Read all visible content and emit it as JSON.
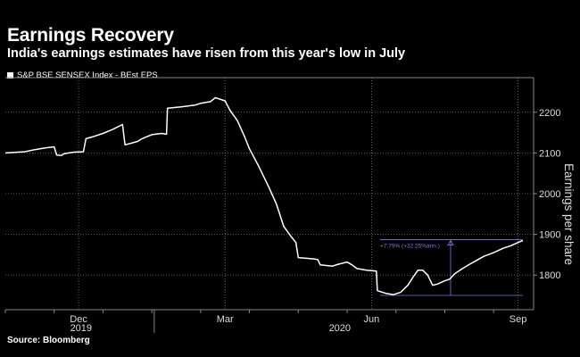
{
  "header": {
    "title": "Earnings Recovery",
    "subtitle": "India's earnings estimates have risen from this year's low in July"
  },
  "legend": {
    "label": "S&P BSE SENSEX Index - BEst EPS"
  },
  "source": "Source: Bloomberg",
  "colors": {
    "background": "#000000",
    "line": "#ffffff",
    "annotation": "#7b7bd6",
    "grid": "#666666"
  },
  "chart_data": {
    "type": "line",
    "title": "Earnings Recovery",
    "subtitle": "India's earnings estimates have risen from this year's low in July",
    "ylabel": "Earnings per share",
    "xlabel": "",
    "ylim": [
      1715,
      2285
    ],
    "y_ticks": [
      1800,
      1900,
      2000,
      2100,
      2200
    ],
    "y_axis_side": "right",
    "grid": "dotted",
    "x_month_labels": [
      "Dec",
      "Mar",
      "Jun",
      "Sep"
    ],
    "x_year_labels": [
      "2019",
      "2020"
    ],
    "series": [
      {
        "name": "S&P BSE SENSEX Index - BEst EPS",
        "points": [
          [
            0,
            2100
          ],
          [
            0.4,
            2103
          ],
          [
            0.6,
            2108
          ],
          [
            0.8,
            2112
          ],
          [
            1.0,
            2115
          ],
          [
            1.05,
            2095
          ],
          [
            1.15,
            2094
          ],
          [
            1.2,
            2098
          ],
          [
            1.4,
            2102
          ],
          [
            1.6,
            2103
          ],
          [
            1.65,
            2135
          ],
          [
            1.8,
            2140
          ],
          [
            2.0,
            2148
          ],
          [
            2.2,
            2158
          ],
          [
            2.4,
            2170
          ],
          [
            2.45,
            2120
          ],
          [
            2.7,
            2128
          ],
          [
            2.8,
            2135
          ],
          [
            2.9,
            2140
          ],
          [
            3.0,
            2145
          ],
          [
            3.2,
            2148
          ],
          [
            3.3,
            2146
          ],
          [
            3.32,
            2210
          ],
          [
            3.6,
            2213
          ],
          [
            3.9,
            2218
          ],
          [
            4.0,
            2222
          ],
          [
            4.2,
            2226
          ],
          [
            4.3,
            2236
          ],
          [
            4.5,
            2228
          ],
          [
            4.6,
            2205
          ],
          [
            4.75,
            2180
          ],
          [
            4.9,
            2140
          ],
          [
            5.0,
            2110
          ],
          [
            5.2,
            2065
          ],
          [
            5.4,
            2015
          ],
          [
            5.55,
            1975
          ],
          [
            5.7,
            1920
          ],
          [
            5.85,
            1895
          ],
          [
            5.95,
            1880
          ],
          [
            6.0,
            1843
          ],
          [
            6.3,
            1840
          ],
          [
            6.4,
            1838
          ],
          [
            6.45,
            1825
          ],
          [
            6.7,
            1822
          ],
          [
            6.8,
            1826
          ],
          [
            7.0,
            1832
          ],
          [
            7.1,
            1825
          ],
          [
            7.2,
            1816
          ],
          [
            7.4,
            1812
          ],
          [
            7.6,
            1810
          ],
          [
            7.62,
            1762
          ],
          [
            7.8,
            1755
          ],
          [
            7.95,
            1752
          ],
          [
            8.1,
            1758
          ],
          [
            8.25,
            1776
          ],
          [
            8.35,
            1795
          ],
          [
            8.45,
            1812
          ],
          [
            8.55,
            1812
          ],
          [
            8.65,
            1800
          ],
          [
            8.75,
            1775
          ],
          [
            8.85,
            1778
          ],
          [
            9.0,
            1786
          ],
          [
            9.1,
            1790
          ],
          [
            9.2,
            1803
          ],
          [
            9.35,
            1815
          ],
          [
            9.5,
            1826
          ],
          [
            9.65,
            1836
          ],
          [
            9.8,
            1846
          ],
          [
            10.0,
            1855
          ],
          [
            10.2,
            1866
          ],
          [
            10.35,
            1872
          ],
          [
            10.5,
            1880
          ],
          [
            10.6,
            1885
          ]
        ]
      }
    ],
    "annotation": {
      "text": "+7.79% (+32.25%ann.)",
      "from": 1750,
      "to": 1887
    }
  }
}
